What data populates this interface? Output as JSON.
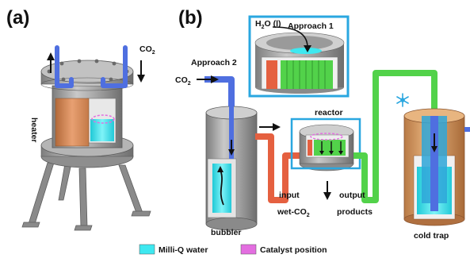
{
  "panels": {
    "a": "(a)",
    "b": "(b)"
  },
  "panel_a": {
    "heater_label": "heater",
    "co2_label": "CO",
    "co2_sub": "2"
  },
  "panel_b": {
    "approach1_label": "Approach 1",
    "h2o_label": "H",
    "h2o_sub": "2",
    "h2o_rest": "O (l)",
    "approach2_label": "Approach 2",
    "co2_label": "CO",
    "co2_sub": "2",
    "reactor_label": "reactor",
    "input_label": "input",
    "output_label": "output",
    "wet_co2_label": "wet-CO",
    "wet_co2_sub": "2",
    "products_label": "products",
    "bubbler_label": "bubbler",
    "cold_trap_label": "cold trap"
  },
  "legend": {
    "items": [
      {
        "label": "Milli-Q water",
        "color": "#3ee8f0"
      },
      {
        "label": "Catalyst position",
        "color": "#e36ee0"
      }
    ]
  },
  "colors": {
    "frame_blue": "#2aa7e0",
    "gas_tube_blue": "#4f6fe0",
    "heater_orange": "#d98a56",
    "inlet_red": "#e56040",
    "outlet_green": "#52d24a",
    "cold_trap_tan": "#d9a06a",
    "vessel_grey": "#9a9a9a",
    "water_cyan": "#3ee8f0",
    "catalyst_magenta": "#e36ee0"
  }
}
